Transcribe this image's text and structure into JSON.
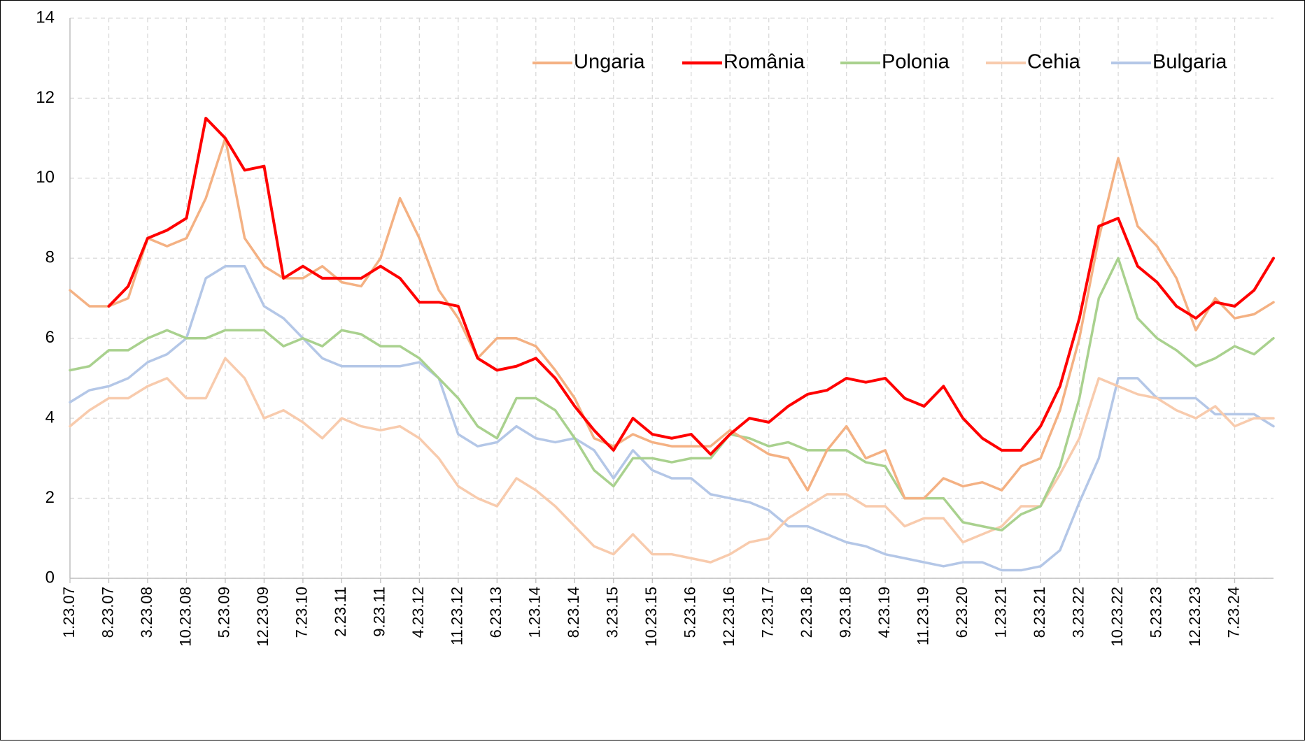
{
  "chart_data": {
    "type": "line",
    "categories": [
      "1.23.07",
      null,
      "8.23.07",
      null,
      "3.23.08",
      null,
      "10.23.08",
      null,
      "5.23.09",
      null,
      "12.23.09",
      null,
      "7.23.10",
      null,
      "2.23.11",
      null,
      "9.23.11",
      null,
      "4.23.12",
      null,
      "11.23.12",
      null,
      "6.23.13",
      null,
      "1.23.14",
      null,
      "8.23.14",
      null,
      "3.23.15",
      null,
      "10.23.15",
      null,
      "5.23.16",
      null,
      "12.23.16",
      null,
      "7.23.17",
      null,
      "2.23.18",
      null,
      "9.23.18",
      null,
      "4.23.19",
      null,
      "11.23.19",
      null,
      "6.23.20",
      null,
      "1.23.21",
      null,
      "8.23.21",
      null,
      "3.23.22",
      null,
      "10.23.22",
      null,
      "5.23.23",
      null,
      "12.23.23",
      null,
      "7.23.24",
      null,
      null
    ],
    "series": [
      {
        "name": "Ungaria",
        "color": "#f4b183",
        "values": [
          7.2,
          6.8,
          6.8,
          7.0,
          8.5,
          8.3,
          8.5,
          9.5,
          11.0,
          8.5,
          7.8,
          7.5,
          7.5,
          7.8,
          7.4,
          7.3,
          8.0,
          9.5,
          8.5,
          7.2,
          6.5,
          5.5,
          6.0,
          6.0,
          5.8,
          5.2,
          4.5,
          3.5,
          3.3,
          3.6,
          3.4,
          3.3,
          3.3,
          3.3,
          3.7,
          3.4,
          3.1,
          3.0,
          2.2,
          3.2,
          3.8,
          3.0,
          3.2,
          2.0,
          2.0,
          2.5,
          2.3,
          2.4,
          2.2,
          2.8,
          3.0,
          4.2,
          6.0,
          8.5,
          10.5,
          8.8,
          8.3,
          7.5,
          6.2,
          7.0,
          6.5,
          6.6,
          6.9
        ]
      },
      {
        "name": "România",
        "color": "#ff0000",
        "values": [
          null,
          null,
          6.8,
          7.3,
          8.5,
          8.7,
          9.0,
          11.5,
          11.0,
          10.2,
          10.3,
          7.5,
          7.8,
          7.5,
          7.5,
          7.5,
          7.8,
          7.5,
          6.9,
          6.9,
          6.8,
          5.5,
          5.2,
          5.3,
          5.5,
          5.0,
          4.3,
          3.7,
          3.2,
          4.0,
          3.6,
          3.5,
          3.6,
          3.1,
          3.6,
          4.0,
          3.9,
          4.3,
          4.6,
          4.7,
          5.0,
          4.9,
          5.0,
          4.5,
          4.3,
          4.8,
          4.0,
          3.5,
          3.2,
          3.2,
          3.8,
          4.8,
          6.5,
          8.8,
          9.0,
          7.8,
          7.4,
          6.8,
          6.5,
          6.9,
          6.8,
          7.2,
          8.0
        ]
      },
      {
        "name": "Polonia",
        "color": "#a9d18e",
        "values": [
          5.2,
          5.3,
          5.7,
          5.7,
          6.0,
          6.2,
          6.0,
          6.0,
          6.2,
          6.2,
          6.2,
          5.8,
          6.0,
          5.8,
          6.2,
          6.1,
          5.8,
          5.8,
          5.5,
          5.0,
          4.5,
          3.8,
          3.5,
          4.5,
          4.5,
          4.2,
          3.5,
          2.7,
          2.3,
          3.0,
          3.0,
          2.9,
          3.0,
          3.0,
          3.6,
          3.5,
          3.3,
          3.4,
          3.2,
          3.2,
          3.2,
          2.9,
          2.8,
          2.0,
          2.0,
          2.0,
          1.4,
          1.3,
          1.2,
          1.6,
          1.8,
          2.8,
          4.5,
          7.0,
          8.0,
          6.5,
          6.0,
          5.7,
          5.3,
          5.5,
          5.8,
          5.6,
          6.0
        ]
      },
      {
        "name": "Cehia",
        "color": "#f8cbad",
        "values": [
          3.8,
          4.2,
          4.5,
          4.5,
          4.8,
          5.0,
          4.5,
          4.5,
          5.5,
          5.0,
          4.0,
          4.2,
          3.9,
          3.5,
          4.0,
          3.8,
          3.7,
          3.8,
          3.5,
          3.0,
          2.3,
          2.0,
          1.8,
          2.5,
          2.2,
          1.8,
          1.3,
          0.8,
          0.6,
          1.1,
          0.6,
          0.6,
          0.5,
          0.4,
          0.6,
          0.9,
          1.0,
          1.5,
          1.8,
          2.1,
          2.1,
          1.8,
          1.8,
          1.3,
          1.5,
          1.5,
          0.9,
          1.1,
          1.3,
          1.8,
          1.8,
          2.6,
          3.5,
          5.0,
          4.8,
          4.6,
          4.5,
          4.2,
          4.0,
          4.3,
          3.8,
          4.0,
          4.0
        ]
      },
      {
        "name": "Bulgaria",
        "color": "#b4c7e7",
        "values": [
          4.4,
          4.7,
          4.8,
          5.0,
          5.4,
          5.6,
          6.0,
          7.5,
          7.8,
          7.8,
          6.8,
          6.5,
          6.0,
          5.5,
          5.3,
          5.3,
          5.3,
          5.3,
          5.4,
          5.0,
          3.6,
          3.3,
          3.4,
          3.8,
          3.5,
          3.4,
          3.5,
          3.2,
          2.5,
          3.2,
          2.7,
          2.5,
          2.5,
          2.1,
          2.0,
          1.9,
          1.7,
          1.3,
          1.3,
          1.1,
          0.9,
          0.8,
          0.6,
          0.5,
          0.4,
          0.3,
          0.4,
          0.4,
          0.2,
          0.2,
          0.3,
          0.7,
          1.9,
          3.0,
          5.0,
          5.0,
          4.5,
          4.5,
          4.5,
          4.1,
          4.1,
          4.1,
          3.8
        ]
      }
    ],
    "ylim": [
      0,
      14
    ],
    "yticks": [
      0,
      2,
      4,
      6,
      8,
      10,
      12,
      14
    ],
    "grid": true
  }
}
